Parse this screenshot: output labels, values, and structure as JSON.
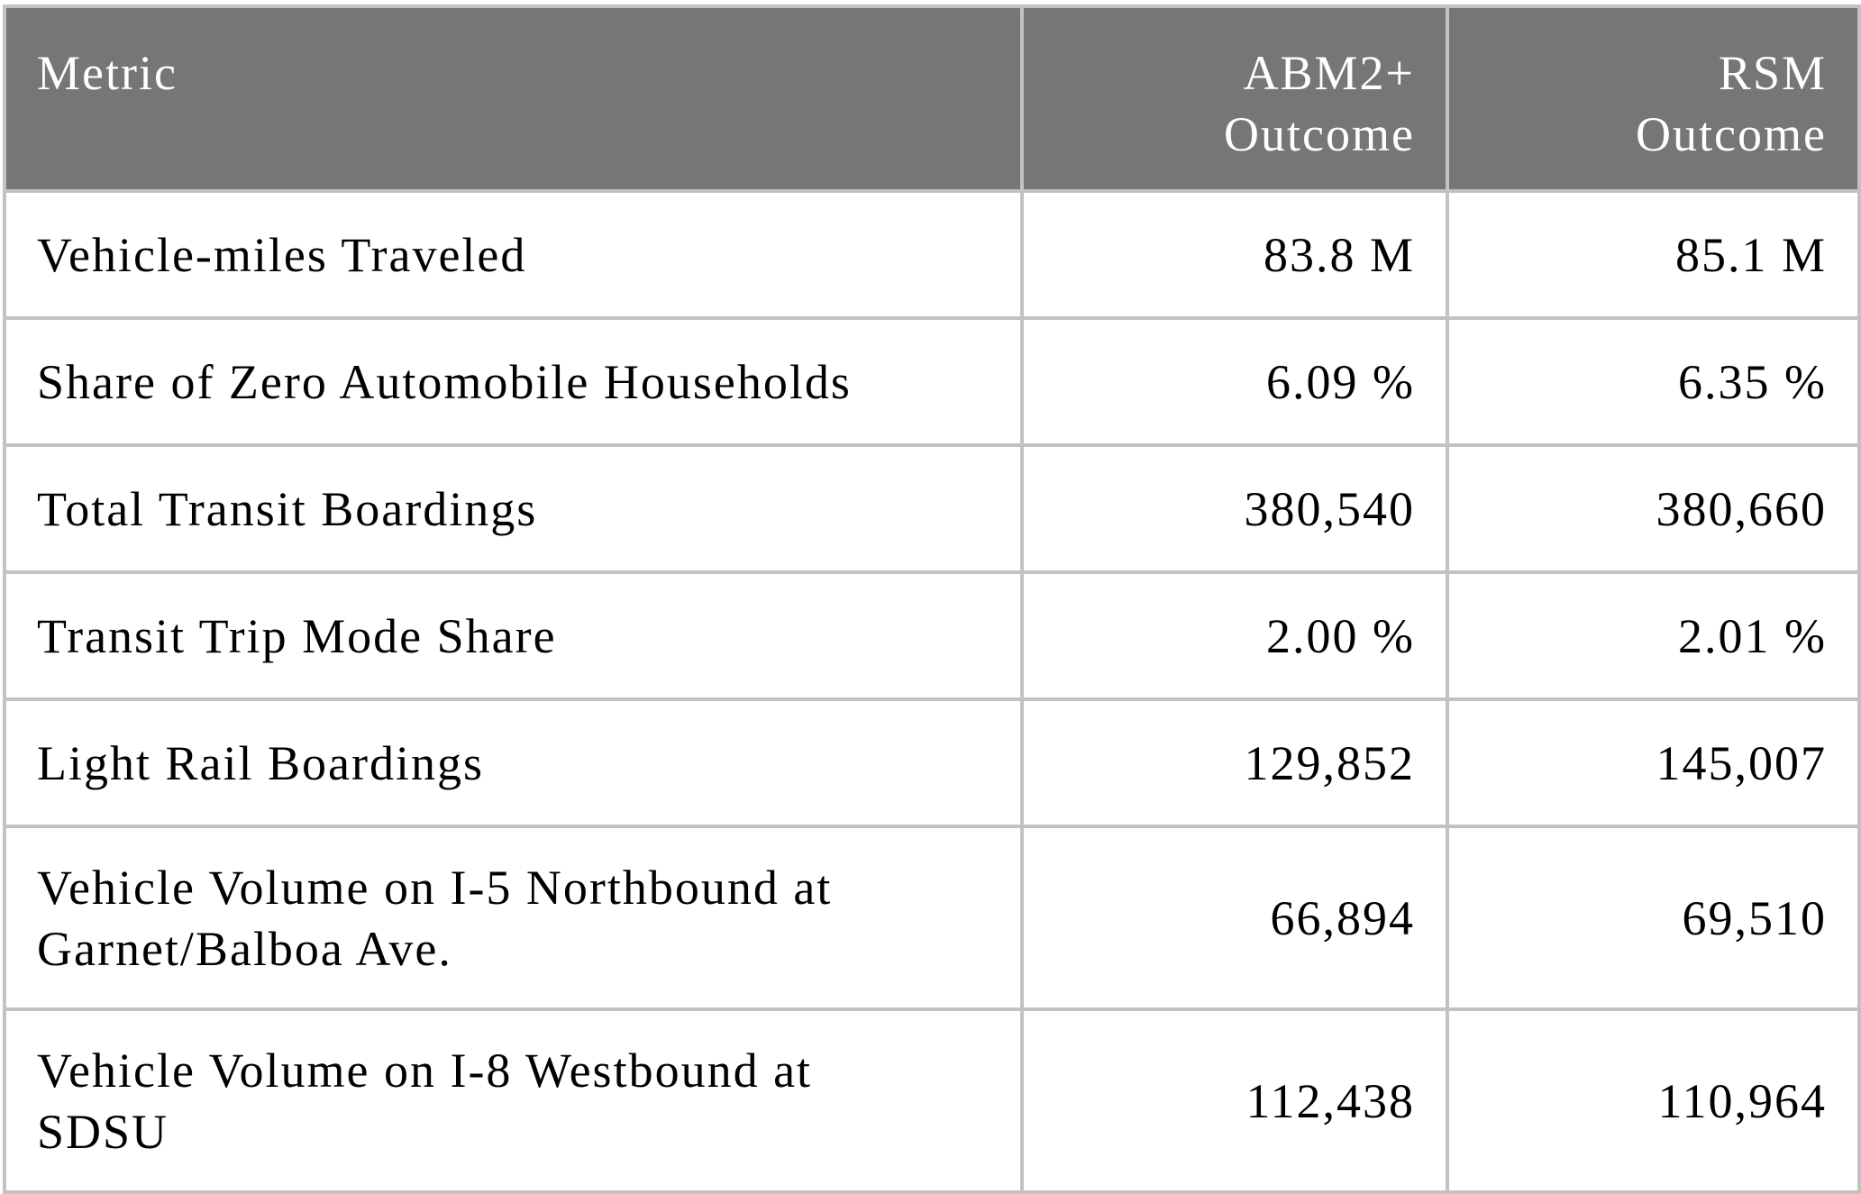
{
  "table": {
    "header": {
      "metric": "Metric",
      "abm": [
        "ABM2+",
        "Outcome"
      ],
      "rsm": [
        "RSM",
        "Outcome"
      ]
    },
    "rows": [
      {
        "metric": [
          "Vehicle-miles Traveled"
        ],
        "abm": "83.8 M",
        "rsm": "85.1 M"
      },
      {
        "metric": [
          "Share of Zero Automobile Households"
        ],
        "abm": "6.09 %",
        "rsm": "6.35 %"
      },
      {
        "metric": [
          "Total Transit Boardings"
        ],
        "abm": "380,540",
        "rsm": "380,660"
      },
      {
        "metric": [
          "Transit Trip Mode Share"
        ],
        "abm": "2.00 %",
        "rsm": "2.01 %"
      },
      {
        "metric": [
          "Light Rail Boardings"
        ],
        "abm": "129,852",
        "rsm": "145,007"
      },
      {
        "metric": [
          "Vehicle Volume on I-5 Northbound at",
          "Garnet/Balboa Ave."
        ],
        "abm": "66,894",
        "rsm": "69,510"
      },
      {
        "metric": [
          "Vehicle Volume on I-8 Westbound at",
          "SDSU"
        ],
        "abm": "112,438",
        "rsm": "110,964"
      }
    ]
  }
}
